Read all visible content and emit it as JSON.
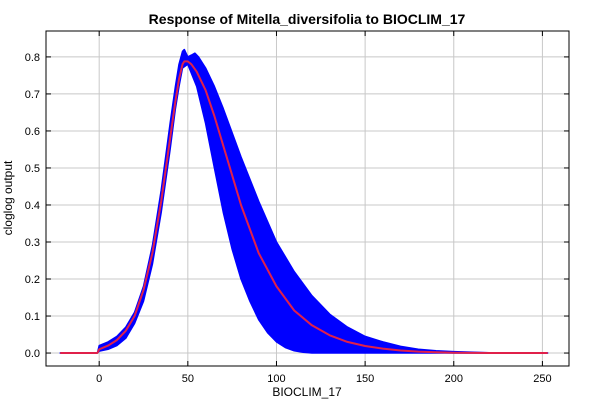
{
  "chart_data": {
    "type": "area",
    "title": "Response of Mitella_diversifolia to BIOCLIM_17",
    "xlabel": "BIOCLIM_17",
    "ylabel": "cloglog output",
    "xlim": [
      -30,
      265
    ],
    "ylim": [
      -0.035,
      0.87
    ],
    "xticks": [
      0,
      50,
      100,
      150,
      200,
      250
    ],
    "yticks": [
      0.0,
      0.1,
      0.2,
      0.3,
      0.4,
      0.5,
      0.6,
      0.7,
      0.8
    ],
    "grid": true,
    "series": [
      {
        "role": "band-upper",
        "color": "#0000ff",
        "x": [
          -22,
          -1,
          0,
          5,
          10,
          15,
          20,
          25,
          30,
          35,
          40,
          43,
          45,
          47,
          48,
          50,
          52,
          54,
          56,
          60,
          65,
          70,
          80,
          90,
          100,
          110,
          120,
          130,
          140,
          150,
          160,
          170,
          180,
          190,
          200,
          220,
          253
        ],
        "values": [
          0.0,
          0.0,
          0.02,
          0.03,
          0.045,
          0.07,
          0.11,
          0.18,
          0.29,
          0.44,
          0.62,
          0.72,
          0.78,
          0.815,
          0.82,
          0.8,
          0.805,
          0.81,
          0.8,
          0.77,
          0.72,
          0.66,
          0.53,
          0.41,
          0.3,
          0.22,
          0.155,
          0.105,
          0.07,
          0.045,
          0.03,
          0.018,
          0.01,
          0.006,
          0.004,
          0.001,
          0.0
        ]
      },
      {
        "role": "band-lower",
        "color": "#0000ff",
        "x": [
          -22,
          -1,
          0,
          5,
          10,
          15,
          20,
          25,
          30,
          35,
          40,
          43,
          45,
          47,
          50,
          55,
          60,
          65,
          70,
          75,
          80,
          85,
          90,
          95,
          100,
          105,
          110,
          115,
          120,
          125,
          127,
          130,
          253
        ],
        "values": [
          0.0,
          0.0,
          0.005,
          0.01,
          0.02,
          0.04,
          0.08,
          0.14,
          0.24,
          0.38,
          0.55,
          0.66,
          0.72,
          0.77,
          0.78,
          0.72,
          0.62,
          0.5,
          0.38,
          0.28,
          0.2,
          0.14,
          0.09,
          0.055,
          0.03,
          0.015,
          0.006,
          0.002,
          0.0,
          0.0,
          0.0,
          0.0,
          0.0
        ]
      },
      {
        "role": "mean",
        "color": "#e0204a",
        "x": [
          -22,
          -1,
          0,
          5,
          10,
          15,
          20,
          25,
          30,
          35,
          40,
          43,
          45,
          47,
          48,
          50,
          52,
          55,
          60,
          65,
          70,
          75,
          80,
          90,
          100,
          110,
          120,
          130,
          140,
          150,
          160,
          170,
          180,
          190,
          200,
          220,
          253
        ],
        "values": [
          0.0,
          0.0,
          0.01,
          0.02,
          0.035,
          0.06,
          0.1,
          0.17,
          0.27,
          0.41,
          0.58,
          0.68,
          0.74,
          0.78,
          0.788,
          0.788,
          0.78,
          0.76,
          0.71,
          0.64,
          0.56,
          0.48,
          0.4,
          0.27,
          0.18,
          0.115,
          0.075,
          0.048,
          0.03,
          0.019,
          0.012,
          0.007,
          0.004,
          0.002,
          0.001,
          0.0,
          0.0
        ]
      }
    ]
  }
}
